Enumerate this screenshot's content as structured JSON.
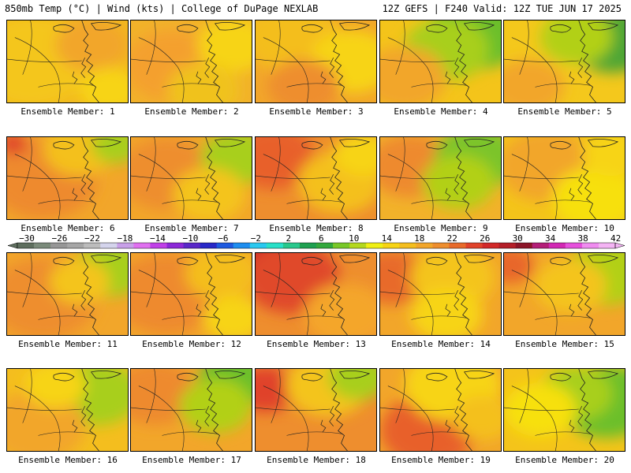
{
  "header": {
    "left": "850mb Temp (°C) | Wind (kts) | College of DuPage NEXLAB",
    "right": "12Z GEFS | F240 Valid: 12Z TUE JUN 17 2025"
  },
  "panels": [
    {
      "label": "Ensemble Member: 1",
      "base": "#f2b81e",
      "blobs": [
        [
          "#f4c61a",
          0.2,
          0.5,
          0.5
        ],
        [
          "#f2a62a",
          0.7,
          0.3,
          0.3
        ],
        [
          "#f7d414",
          0.85,
          0.85,
          0.25
        ]
      ]
    },
    {
      "label": "Ensemble Member: 2",
      "base": "#f2b22a",
      "blobs": [
        [
          "#f4a02e",
          0.35,
          0.55,
          0.4
        ],
        [
          "#f7d414",
          0.85,
          0.3,
          0.3
        ],
        [
          "#f0c21e",
          0.6,
          0.85,
          0.3
        ]
      ]
    },
    {
      "label": "Ensemble Member: 3",
      "base": "#f2a62a",
      "blobs": [
        [
          "#f4be1e",
          0.3,
          0.2,
          0.4
        ],
        [
          "#f7d414",
          0.8,
          0.5,
          0.35
        ],
        [
          "#ee8e2e",
          0.4,
          0.8,
          0.3
        ]
      ]
    },
    {
      "label": "Ensemble Member: 4",
      "base": "#f4c41a",
      "blobs": [
        [
          "#6cbf2a",
          0.8,
          0.15,
          0.4
        ],
        [
          "#a8cf1c",
          0.55,
          0.35,
          0.35
        ],
        [
          "#f2a62a",
          0.2,
          0.7,
          0.35
        ]
      ]
    },
    {
      "label": "Ensemble Member: 5",
      "base": "#f4c81c",
      "blobs": [
        [
          "#4ea636",
          0.9,
          0.25,
          0.35
        ],
        [
          "#b2d018",
          0.6,
          0.2,
          0.3
        ],
        [
          "#f2a62a",
          0.2,
          0.8,
          0.3
        ]
      ]
    },
    {
      "label": "Ensemble Member: 6",
      "base": "#f2a62a",
      "blobs": [
        [
          "#ee8a2e",
          0.3,
          0.5,
          0.45
        ],
        [
          "#f4c01c",
          0.6,
          0.15,
          0.3
        ],
        [
          "#e0422a",
          0.05,
          0.08,
          0.12
        ],
        [
          "#a8cf1c",
          0.9,
          0.1,
          0.2
        ]
      ]
    },
    {
      "label": "Ensemble Member: 7",
      "base": "#f2a62a",
      "blobs": [
        [
          "#ee8e2e",
          0.3,
          0.45,
          0.4
        ],
        [
          "#a8cf1c",
          0.88,
          0.25,
          0.3
        ],
        [
          "#f4c41a",
          0.65,
          0.7,
          0.3
        ]
      ]
    },
    {
      "label": "Ensemble Member: 8",
      "base": "#ee8e2e",
      "blobs": [
        [
          "#e8602a",
          0.15,
          0.25,
          0.35
        ],
        [
          "#f4c01c",
          0.7,
          0.55,
          0.35
        ],
        [
          "#f7d414",
          0.9,
          0.2,
          0.25
        ]
      ]
    },
    {
      "label": "Ensemble Member: 9",
      "base": "#f2b22a",
      "blobs": [
        [
          "#ee8a2e",
          0.25,
          0.35,
          0.35
        ],
        [
          "#7cc42a",
          0.8,
          0.25,
          0.35
        ],
        [
          "#b2d018",
          0.65,
          0.55,
          0.3
        ]
      ]
    },
    {
      "label": "Ensemble Member: 10",
      "base": "#f4c41a",
      "blobs": [
        [
          "#f2a62a",
          0.35,
          0.35,
          0.4
        ],
        [
          "#f7e010",
          0.75,
          0.75,
          0.35
        ],
        [
          "#f7d414",
          0.9,
          0.2,
          0.25
        ]
      ]
    },
    {
      "label": "Ensemble Member: 11",
      "base": "#f2a62a",
      "blobs": [
        [
          "#ee8e2e",
          0.3,
          0.55,
          0.45
        ],
        [
          "#a8cf1c",
          0.85,
          0.2,
          0.3
        ],
        [
          "#f4c41a",
          0.6,
          0.35,
          0.25
        ]
      ]
    },
    {
      "label": "Ensemble Member: 12",
      "base": "#f2a62a",
      "blobs": [
        [
          "#ee8a2e",
          0.3,
          0.5,
          0.45
        ],
        [
          "#f4be1e",
          0.75,
          0.25,
          0.3
        ],
        [
          "#f7d414",
          0.85,
          0.8,
          0.25
        ]
      ]
    },
    {
      "label": "Ensemble Member: 13",
      "base": "#ee8e2e",
      "blobs": [
        [
          "#c81e2a",
          0.1,
          0.1,
          0.3
        ],
        [
          "#e04a2a",
          0.3,
          0.3,
          0.4
        ],
        [
          "#f4a62a",
          0.75,
          0.75,
          0.35
        ]
      ]
    },
    {
      "label": "Ensemble Member: 14",
      "base": "#f2a62a",
      "blobs": [
        [
          "#e86a2a",
          0.1,
          0.3,
          0.3
        ],
        [
          "#f4c41a",
          0.6,
          0.3,
          0.35
        ],
        [
          "#f7d414",
          0.55,
          0.75,
          0.3
        ]
      ]
    },
    {
      "label": "Ensemble Member: 15",
      "base": "#f2a62a",
      "blobs": [
        [
          "#b2d018",
          0.85,
          0.25,
          0.35
        ],
        [
          "#f4c41a",
          0.55,
          0.4,
          0.3
        ],
        [
          "#e8662a",
          0.05,
          0.15,
          0.2
        ]
      ]
    },
    {
      "label": "Ensemble Member: 16",
      "base": "#f4be1e",
      "blobs": [
        [
          "#a8cf1c",
          0.75,
          0.3,
          0.35
        ],
        [
          "#f2a62a",
          0.25,
          0.7,
          0.4
        ],
        [
          "#f7d414",
          0.4,
          0.2,
          0.25
        ]
      ]
    },
    {
      "label": "Ensemble Member: 17",
      "base": "#f2a62a",
      "blobs": [
        [
          "#ee8a2e",
          0.2,
          0.3,
          0.35
        ],
        [
          "#6cbf2a",
          0.85,
          0.15,
          0.3
        ],
        [
          "#b2d018",
          0.7,
          0.45,
          0.3
        ]
      ]
    },
    {
      "label": "Ensemble Member: 18",
      "base": "#ee8e2e",
      "blobs": [
        [
          "#e0422a",
          0.08,
          0.25,
          0.25
        ],
        [
          "#f4c41a",
          0.6,
          0.2,
          0.35
        ],
        [
          "#a8cf1c",
          0.85,
          0.1,
          0.25
        ]
      ]
    },
    {
      "label": "Ensemble Member: 19",
      "base": "#f2a62a",
      "blobs": [
        [
          "#e8602a",
          0.4,
          0.75,
          0.4
        ],
        [
          "#f7d414",
          0.6,
          0.2,
          0.4
        ],
        [
          "#f4c01c",
          0.85,
          0.6,
          0.25
        ]
      ]
    },
    {
      "label": "Ensemble Member: 20",
      "base": "#f4c41a",
      "blobs": [
        [
          "#6cbf2a",
          0.85,
          0.4,
          0.4
        ],
        [
          "#a8cf1c",
          0.6,
          0.3,
          0.3
        ],
        [
          "#f7e010",
          0.3,
          0.5,
          0.3
        ]
      ]
    }
  ],
  "colorbar": {
    "ticks": [
      "-30",
      "-26",
      "-22",
      "-18",
      "-14",
      "-10",
      "-6",
      "-2",
      "2",
      "6",
      "10",
      "14",
      "18",
      "22",
      "26",
      "30",
      "34",
      "38",
      "42"
    ],
    "colors": [
      "#5e6e5e",
      "#7a8a7a",
      "#969696",
      "#a6a6a6",
      "#bcbcbc",
      "#d4d4ec",
      "#c8a0e8",
      "#e070f0",
      "#c040e8",
      "#8c28d8",
      "#5a28c8",
      "#2828c8",
      "#1e5ae0",
      "#1e8ef0",
      "#28c8f0",
      "#28e0c8",
      "#28c88c",
      "#1ea050",
      "#32a83c",
      "#78c828",
      "#b4d81e",
      "#f0f014",
      "#f7d414",
      "#f4be1e",
      "#f2a62a",
      "#ee8e2e",
      "#e86a2a",
      "#e0422a",
      "#d22828",
      "#b41e28",
      "#8c1428",
      "#b41e78",
      "#d228b4",
      "#e650dc",
      "#f08cf0",
      "#f4b4f4"
    ]
  }
}
